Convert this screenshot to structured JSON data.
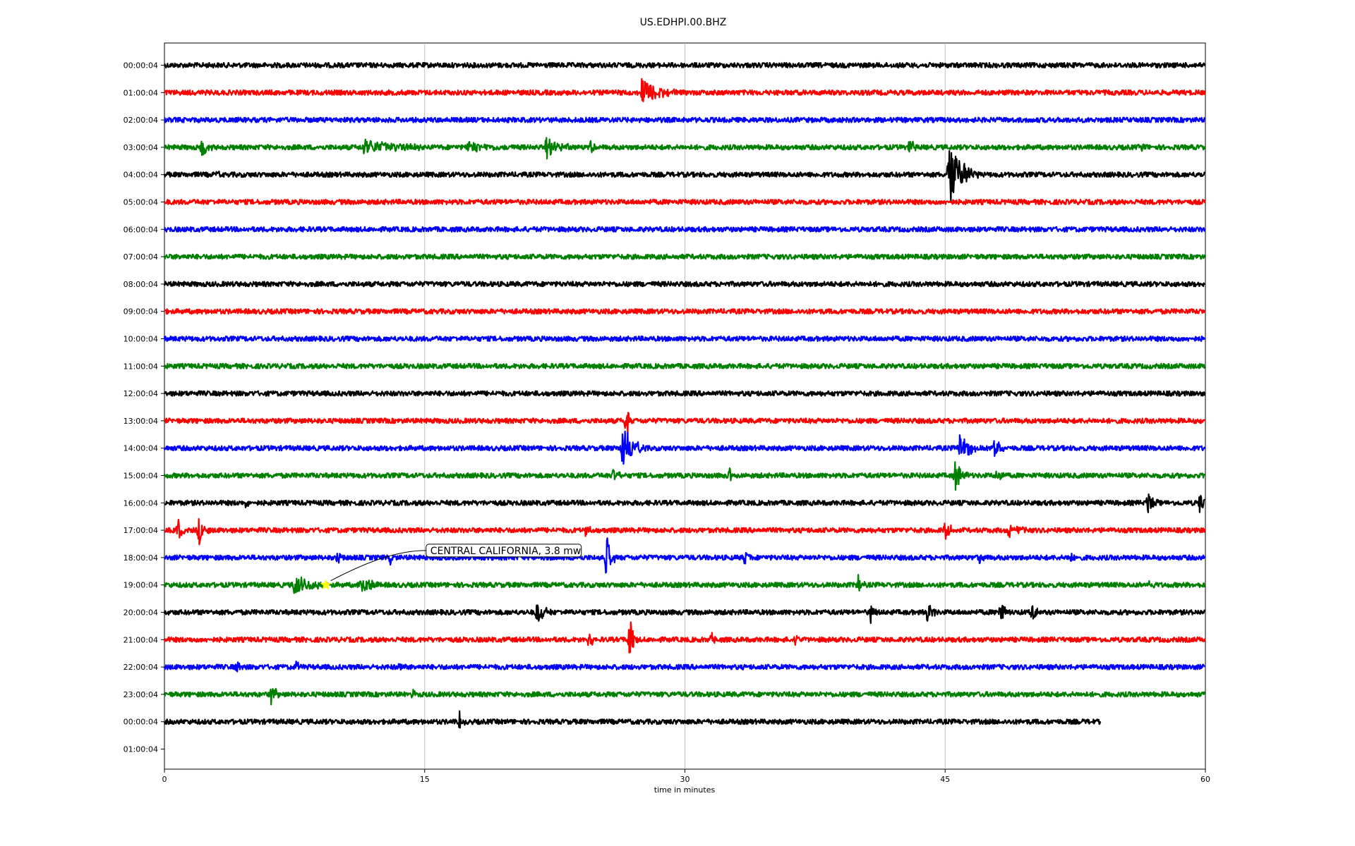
{
  "chart_data": {
    "type": "line",
    "title": "US.EDHPI.00.BHZ",
    "xlabel": "time in minutes",
    "ylabel": "",
    "xlim": [
      0,
      60
    ],
    "xticks": [
      0,
      15,
      30,
      45,
      60
    ],
    "grid_x": true,
    "grid_y": false,
    "row_labels": [
      "00:00:04",
      "01:00:04",
      "02:00:04",
      "03:00:04",
      "04:00:04",
      "05:00:04",
      "06:00:04",
      "07:00:04",
      "08:00:04",
      "09:00:04",
      "10:00:04",
      "11:00:04",
      "12:00:04",
      "13:00:04",
      "14:00:04",
      "15:00:04",
      "16:00:04",
      "17:00:04",
      "18:00:04",
      "19:00:04",
      "20:00:04",
      "21:00:04",
      "22:00:04",
      "23:00:04",
      "00:00:04",
      "01:00:04"
    ],
    "trace_colors": [
      "#000000",
      "#ff0000",
      "#0000ff",
      "#008000"
    ],
    "trace_end_minutes": [
      60,
      60,
      60,
      60,
      60,
      60,
      60,
      60,
      60,
      60,
      60,
      60,
      60,
      60,
      60,
      60,
      60,
      60,
      60,
      60,
      60,
      60,
      60,
      60,
      54
    ],
    "events": [
      {
        "row": 1,
        "t": 27.5,
        "amp": 1.0,
        "dur": 2.0
      },
      {
        "row": 3,
        "t": 2.2,
        "amp": 0.7,
        "dur": 0.6
      },
      {
        "row": 3,
        "t": 11.5,
        "amp": 0.5,
        "dur": 4.0
      },
      {
        "row": 3,
        "t": 17.5,
        "amp": 0.35,
        "dur": 2.5
      },
      {
        "row": 3,
        "t": 22.0,
        "amp": 0.7,
        "dur": 1.5
      },
      {
        "row": 3,
        "t": 24.6,
        "amp": 0.4,
        "dur": 0.4
      },
      {
        "row": 3,
        "t": 43.0,
        "amp": 0.6,
        "dur": 0.5
      },
      {
        "row": 3,
        "t": 56.3,
        "amp": 0.4,
        "dur": 0.4
      },
      {
        "row": 4,
        "t": 45.2,
        "amp": 2.2,
        "dur": 1.8
      },
      {
        "row": 4,
        "t": 3.0,
        "amp": 0.3,
        "dur": 0.4
      },
      {
        "row": 13,
        "t": 26.6,
        "amp": 1.4,
        "dur": 0.4
      },
      {
        "row": 14,
        "t": 26.4,
        "amp": 1.6,
        "dur": 1.4
      },
      {
        "row": 14,
        "t": 45.8,
        "amp": 0.9,
        "dur": 1.5
      },
      {
        "row": 14,
        "t": 47.8,
        "amp": 0.7,
        "dur": 0.8
      },
      {
        "row": 15,
        "t": 25.9,
        "amp": 0.6,
        "dur": 0.5
      },
      {
        "row": 15,
        "t": 32.6,
        "amp": 0.5,
        "dur": 0.4
      },
      {
        "row": 15,
        "t": 45.6,
        "amp": 1.0,
        "dur": 0.8
      },
      {
        "row": 15,
        "t": 48.0,
        "amp": 0.5,
        "dur": 0.6
      },
      {
        "row": 16,
        "t": 56.7,
        "amp": 1.0,
        "dur": 0.6
      },
      {
        "row": 16,
        "t": 59.7,
        "amp": 0.8,
        "dur": 0.4
      },
      {
        "row": 16,
        "t": 4.7,
        "amp": 0.3,
        "dur": 0.3
      },
      {
        "row": 17,
        "t": 0.8,
        "amp": 0.8,
        "dur": 0.4
      },
      {
        "row": 17,
        "t": 2.0,
        "amp": 0.9,
        "dur": 0.6
      },
      {
        "row": 17,
        "t": 24.3,
        "amp": 0.4,
        "dur": 0.4
      },
      {
        "row": 17,
        "t": 45.0,
        "amp": 0.6,
        "dur": 0.8
      },
      {
        "row": 17,
        "t": 48.7,
        "amp": 0.5,
        "dur": 1.2
      },
      {
        "row": 18,
        "t": 25.5,
        "amp": 1.6,
        "dur": 0.5
      },
      {
        "row": 18,
        "t": 33.5,
        "amp": 0.7,
        "dur": 0.4
      },
      {
        "row": 18,
        "t": 13.0,
        "amp": 0.4,
        "dur": 0.4
      },
      {
        "row": 18,
        "t": 10.0,
        "amp": 0.5,
        "dur": 0.3
      },
      {
        "row": 18,
        "t": 47.0,
        "amp": 0.4,
        "dur": 0.4
      },
      {
        "row": 18,
        "t": 52.2,
        "amp": 0.5,
        "dur": 0.3
      },
      {
        "row": 19,
        "t": 7.5,
        "amp": 0.7,
        "dur": 2.0
      },
      {
        "row": 19,
        "t": 11.3,
        "amp": 1.0,
        "dur": 1.0
      },
      {
        "row": 19,
        "t": 40.0,
        "amp": 0.6,
        "dur": 0.4
      },
      {
        "row": 19,
        "t": 56.8,
        "amp": 0.6,
        "dur": 0.4
      },
      {
        "row": 20,
        "t": 21.5,
        "amp": 0.9,
        "dur": 0.8
      },
      {
        "row": 20,
        "t": 40.7,
        "amp": 0.7,
        "dur": 0.4
      },
      {
        "row": 20,
        "t": 44.0,
        "amp": 0.8,
        "dur": 0.5
      },
      {
        "row": 20,
        "t": 48.2,
        "amp": 0.9,
        "dur": 0.5
      },
      {
        "row": 20,
        "t": 50.0,
        "amp": 0.6,
        "dur": 0.6
      },
      {
        "row": 21,
        "t": 26.8,
        "amp": 1.5,
        "dur": 0.6
      },
      {
        "row": 21,
        "t": 24.5,
        "amp": 0.8,
        "dur": 0.4
      },
      {
        "row": 21,
        "t": 31.5,
        "amp": 0.5,
        "dur": 0.4
      },
      {
        "row": 21,
        "t": 36.4,
        "amp": 0.5,
        "dur": 0.4
      },
      {
        "row": 22,
        "t": 4.2,
        "amp": 0.4,
        "dur": 0.3
      },
      {
        "row": 22,
        "t": 7.6,
        "amp": 0.4,
        "dur": 0.4
      },
      {
        "row": 22,
        "t": 13.6,
        "amp": 0.3,
        "dur": 0.3
      },
      {
        "row": 23,
        "t": 6.2,
        "amp": 0.9,
        "dur": 0.4
      },
      {
        "row": 23,
        "t": 14.2,
        "amp": 0.5,
        "dur": 0.4
      },
      {
        "row": 24,
        "t": 17.0,
        "amp": 0.6,
        "dur": 0.4
      }
    ],
    "annotation": {
      "text": "CENTRAL CALIFORNIA, 3.8 mw",
      "row": 19,
      "t": 9.3,
      "marker": "star",
      "marker_color": "#ffff00"
    }
  }
}
